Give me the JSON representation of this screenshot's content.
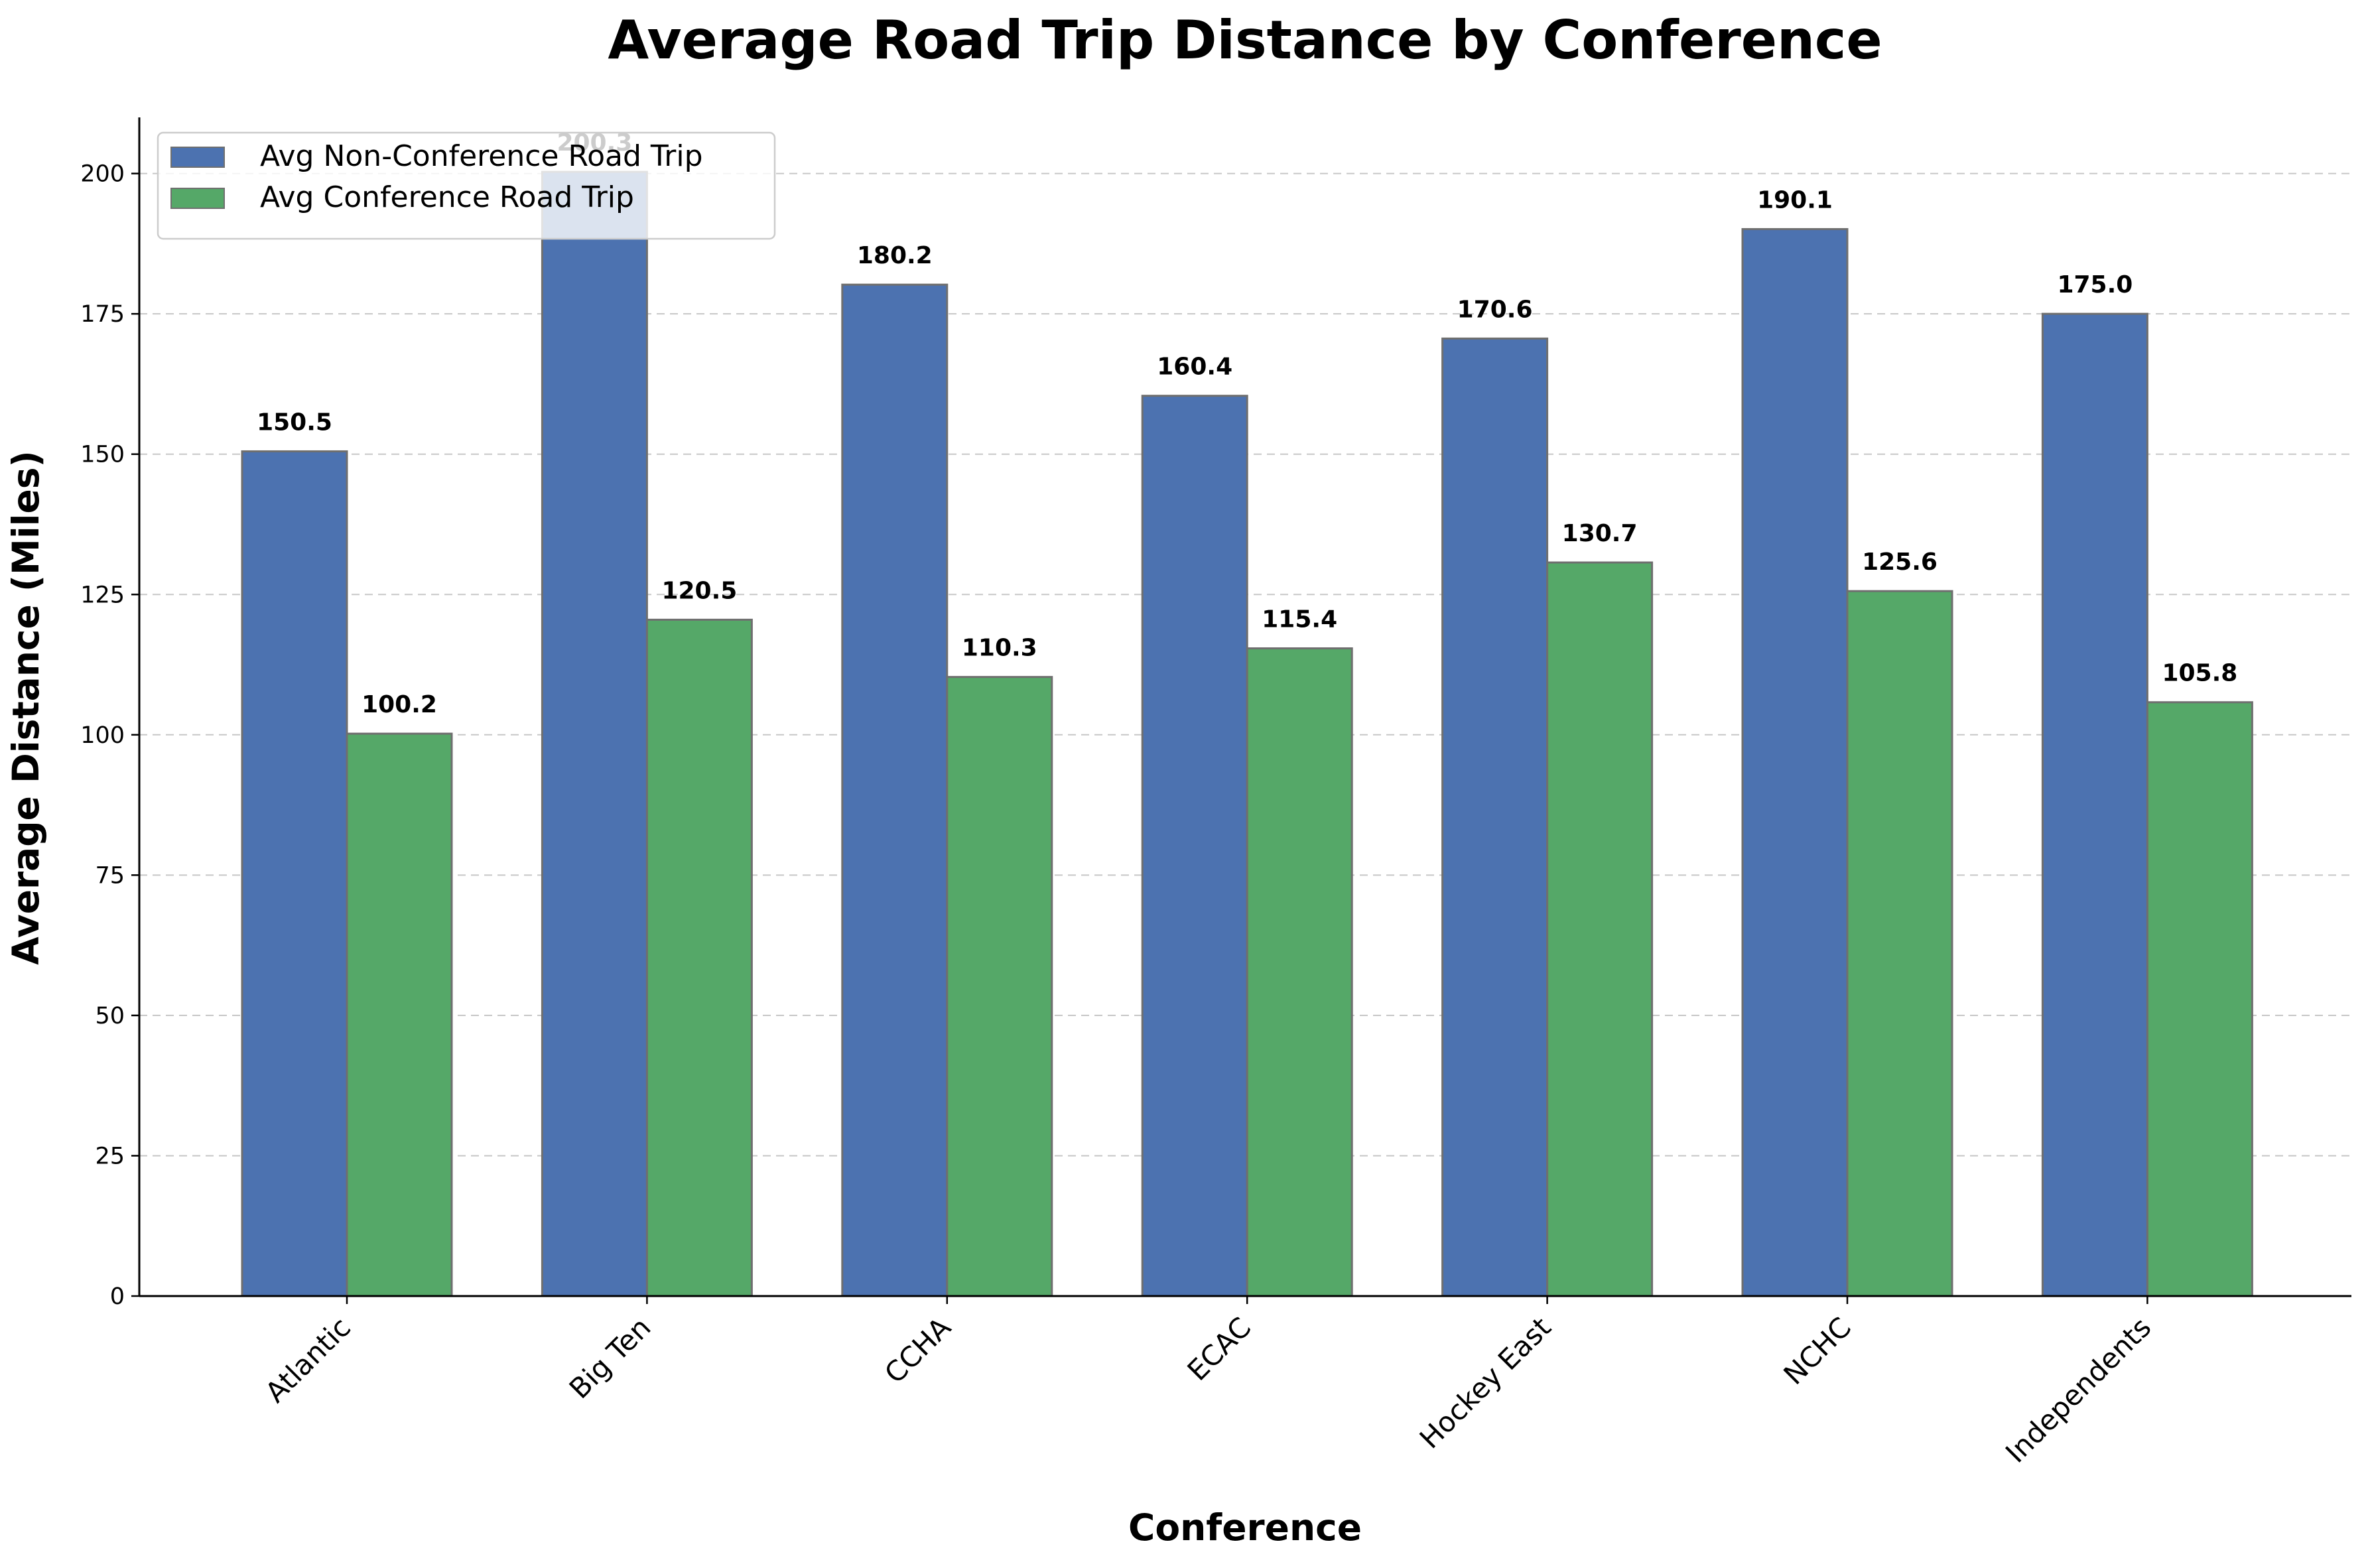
{
  "chart_data": {
    "type": "bar",
    "title": "Average Road Trip Distance by Conference",
    "xlabel": "Conference",
    "ylabel": "Average Distance (Miles)",
    "categories": [
      "Atlantic",
      "Big Ten",
      "CCHA",
      "ECAC",
      "Hockey East",
      "NCHC",
      "Independents"
    ],
    "series": [
      {
        "name": "Avg Non-Conference Road Trip",
        "color": "#4c72b0",
        "values": [
          150.5,
          200.3,
          180.2,
          160.4,
          170.6,
          190.1,
          175.0
        ]
      },
      {
        "name": "Avg Conference Road Trip",
        "color": "#55a868",
        "values": [
          100.2,
          120.5,
          110.3,
          115.4,
          130.7,
          125.6,
          105.8
        ]
      }
    ],
    "ylim": [
      0,
      210
    ],
    "yticks": [
      0,
      25,
      50,
      75,
      100,
      125,
      150,
      175,
      200
    ],
    "grid": "y-dashed",
    "legend": "top-left"
  }
}
